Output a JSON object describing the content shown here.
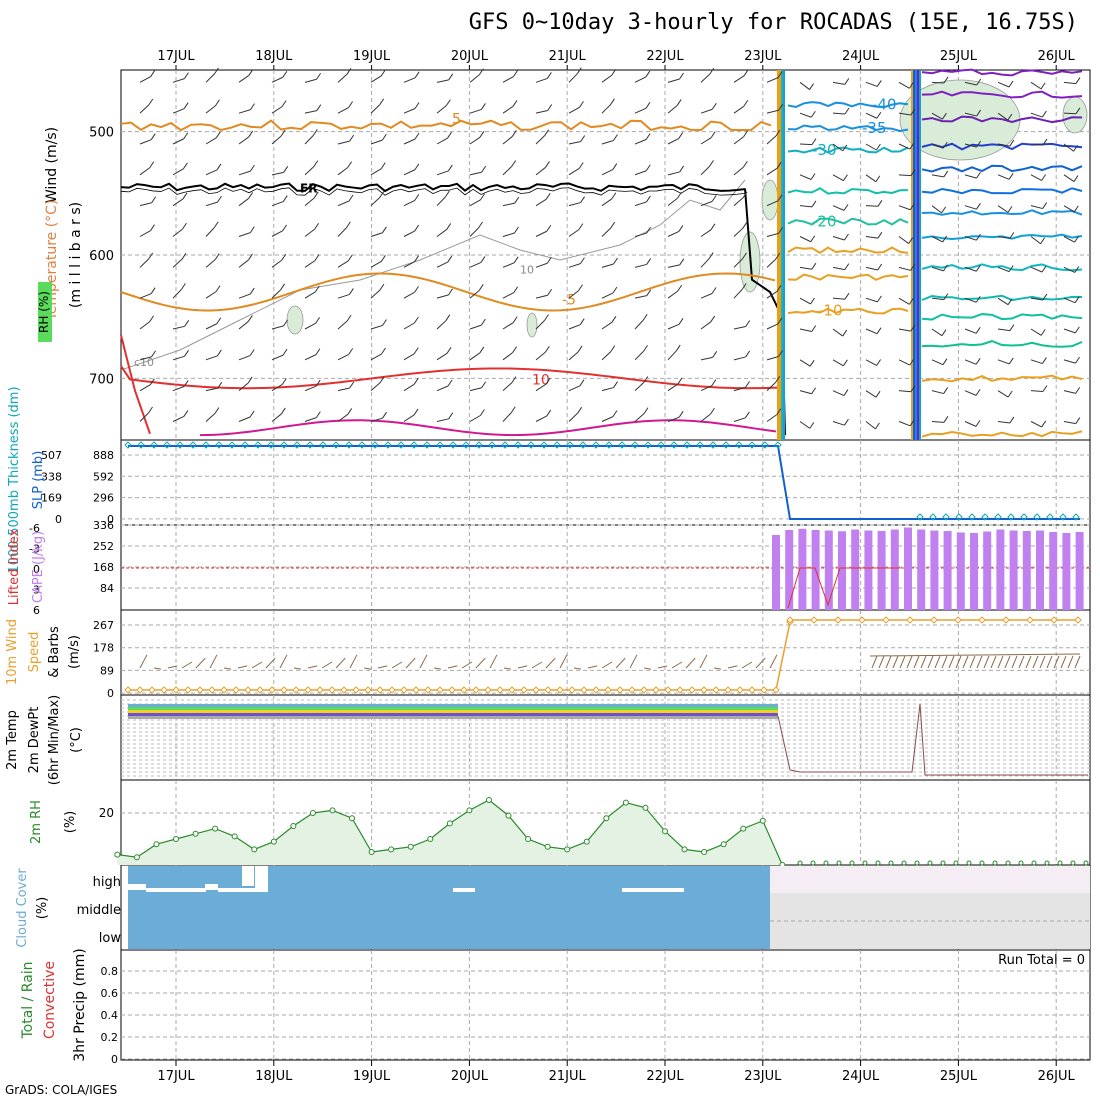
{
  "title": "GFS 0~10day 3-hourly for ROCADAS (15E, 16.75S)",
  "credit": "GrADS: COLA/IGES",
  "dates": [
    "17JUL",
    "18JUL",
    "19JUL",
    "20JUL",
    "21JUL",
    "22JUL",
    "23JUL",
    "24JUL",
    "25JUL",
    "26JUL"
  ],
  "panels": {
    "upper": {
      "ylabel_parts": [
        {
          "text": "RH (%)",
          "color": "#000000"
        },
        {
          "text": "Temperature",
          "color": "#e08040"
        },
        {
          "text": "(°C)",
          "color": "#cc3030"
        },
        {
          "text": "Wind (m/s)",
          "color": "#000000"
        }
      ],
      "ylabel_units": "(m i l l i b a r s)",
      "y_ticks": [
        "500",
        "600",
        "700"
      ],
      "contour_labels": [
        "5",
        "FR",
        "10",
        "-5",
        "-10",
        "-40",
        "-35",
        "-30",
        "-20",
        "-10",
        "c10"
      ]
    },
    "thickness": {
      "ylabel_left": "1000-500mb Thickness (dm)",
      "ylabel_right": "SLP (mb)",
      "left_ticks": [
        "507",
        "338",
        "169",
        "0"
      ],
      "right_ticks": [
        "888",
        "592",
        "296",
        "0"
      ]
    },
    "stability": {
      "ylabel_left": "Lifted Index",
      "ylabel_right": "CAPE (J/kg)",
      "left_ticks": [
        "-6",
        "-3",
        "0",
        "3",
        "6"
      ],
      "right_ticks": [
        "336",
        "252",
        "168",
        "84"
      ]
    },
    "wind10m": {
      "ylabel_a": "10m Wind",
      "ylabel_b": "Speed",
      "ylabel_c": "& Barbs",
      "units": "(m/s)",
      "ticks": [
        "267",
        "178",
        "89",
        "0"
      ]
    },
    "temp2m": {
      "ylabel_a": "2m Temp",
      "ylabel_b": "2m DewPt",
      "ylabel_c": "(6hr Min/Max)",
      "units": "(°C)"
    },
    "rh2m": {
      "ylabel": "2m RH",
      "units": "(%)",
      "ticks": [
        "20"
      ]
    },
    "cloud": {
      "ylabel": "Cloud Cover",
      "units": "(%)",
      "levels": [
        "high",
        "middle",
        "low"
      ]
    },
    "precip": {
      "ylabel_a": "Total / Rain",
      "ylabel_b": "Convective",
      "units": "3hr Precip (mm)",
      "ticks": [
        "0.8",
        "0.6",
        "0.4",
        "0.2",
        "0"
      ],
      "run_total": "Run Total = 0"
    }
  },
  "colors": {
    "accent_blue": "#1060d0",
    "cyan": "#10a8b8",
    "cloud_blue": "#6badd6",
    "rh_green": "#2a8a2a",
    "cape_purple": "#c080f0",
    "wind_orange": "#e8a030",
    "temp_orange": "#e08020",
    "temp_red": "#e03030",
    "temp_magenta": "#d01890"
  },
  "chart_data": [
    {
      "type": "line",
      "title": "2m RH",
      "ylabel": "(%)",
      "x_days": [
        16.4,
        16.6,
        16.8,
        17.0,
        17.2,
        17.4,
        17.6,
        17.8,
        18.0,
        18.2,
        18.4,
        18.6,
        18.8,
        19.0,
        19.2,
        19.4,
        19.6,
        19.8,
        20.0,
        20.2,
        20.4,
        20.6,
        20.8,
        21.0,
        21.2,
        21.4,
        21.6,
        21.8,
        22.0,
        22.2,
        22.4,
        22.6,
        22.8,
        23.0,
        23.2
      ],
      "series": [
        {
          "values": [
            4,
            3,
            8,
            10,
            12,
            14,
            11,
            6,
            9,
            15,
            20,
            21,
            18,
            5,
            6,
            7,
            10,
            16,
            21,
            25,
            19,
            10,
            7,
            6,
            9,
            18,
            24,
            22,
            13,
            6,
            5,
            8,
            14,
            17,
            0
          ]
        }
      ]
    },
    {
      "type": "bar",
      "title": "CAPE",
      "ylabel": "CAPE (J/kg)",
      "note_start_day": 23.1,
      "values": [
        300,
        320,
        325,
        320,
        318,
        315,
        322,
        318,
        316,
        322,
        330,
        322,
        318,
        316,
        310,
        308,
        314,
        322,
        318,
        316,
        318,
        312,
        308,
        312
      ]
    },
    {
      "type": "line",
      "title": "SLP / Thickness",
      "series": [
        {
          "name": "SLP (mb)",
          "values_before": 907,
          "values_after": 0,
          "break_day": 23.2
        }
      ]
    },
    {
      "type": "line",
      "title": "10m Wind Speed",
      "series": [
        {
          "name": "10m Wind Speed",
          "values_before": 0,
          "values_after": 267,
          "break_day": 23.2
        }
      ]
    }
  ]
}
